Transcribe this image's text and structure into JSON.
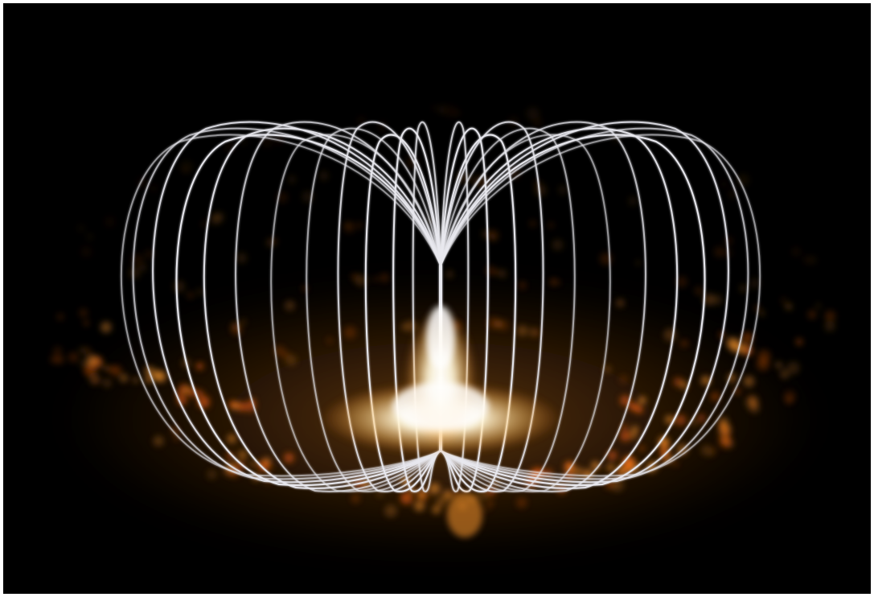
{
  "scene": {
    "subject": "toroidal-field-lines",
    "colors": {
      "frame": "#ffffff",
      "background": "#000000",
      "lines": "#e8e8ee",
      "glow_core": "#fffbe6",
      "glow_warm": "#ffb24a",
      "particles": "#ff9a2e",
      "particles_deep": "#d8580f"
    }
  }
}
